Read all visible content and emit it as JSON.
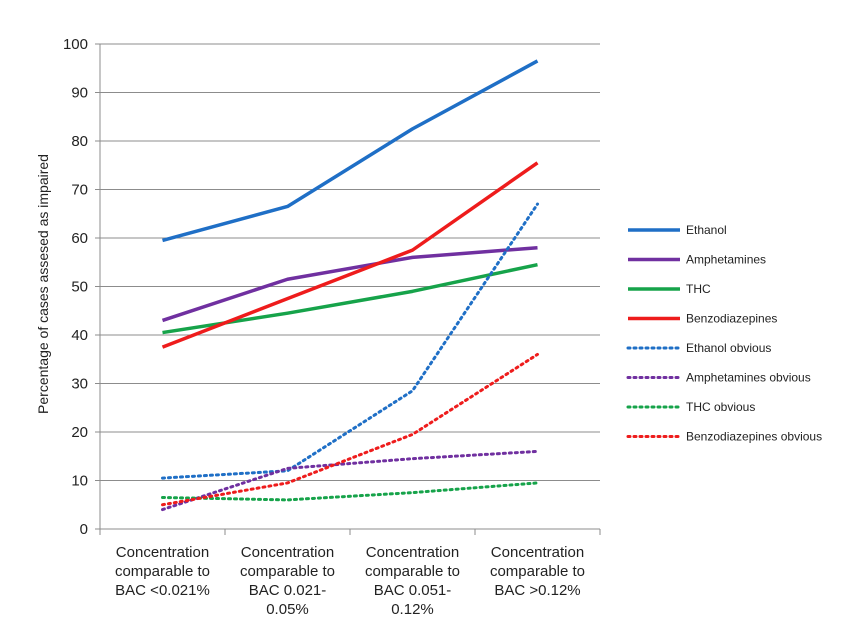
{
  "chart_data": {
    "type": "line",
    "title": "",
    "xlabel": "",
    "ylabel": "Percentage of cases assesed as impaired",
    "ylim": [
      0,
      100
    ],
    "yticks": [
      0,
      10,
      20,
      30,
      40,
      50,
      60,
      70,
      80,
      90,
      100
    ],
    "grid": "horizontal",
    "legend": "right",
    "categories": [
      [
        "Concentration",
        "comparable to",
        "BAC <0.021%"
      ],
      [
        "Concentration",
        "comparable to",
        "BAC 0.021-",
        "0.05%"
      ],
      [
        "Concentration",
        "comparable to",
        "BAC 0.051-",
        "0.12%"
      ],
      [
        "Concentration",
        "comparable to",
        "BAC >0.12%"
      ]
    ],
    "series": [
      {
        "name": "Ethanol",
        "values": [
          59.5,
          66.5,
          82.5,
          96.5
        ],
        "color": "#1f6fc6",
        "style": "solid"
      },
      {
        "name": "Amphetamines",
        "values": [
          43,
          51.5,
          56,
          58
        ],
        "color": "#7030a0",
        "style": "solid"
      },
      {
        "name": "THC",
        "values": [
          40.5,
          44.5,
          49,
          54.5
        ],
        "color": "#16a34a",
        "style": "solid"
      },
      {
        "name": "Benzodiazepines",
        "values": [
          37.5,
          47.5,
          57.5,
          75.5
        ],
        "color": "#ee1c1c",
        "style": "solid"
      },
      {
        "name": "Ethanol obvious",
        "values": [
          10.5,
          12,
          28.5,
          67
        ],
        "color": "#1f6fc6",
        "style": "dotted"
      },
      {
        "name": "Amphetamines obvious",
        "values": [
          4,
          12.5,
          14.5,
          16
        ],
        "color": "#7030a0",
        "style": "dotted"
      },
      {
        "name": "THC obvious",
        "values": [
          6.5,
          6,
          7.5,
          9.5
        ],
        "color": "#16a34a",
        "style": "dotted"
      },
      {
        "name": "Benzodiazepines obvious",
        "values": [
          5,
          9.5,
          19.5,
          36
        ],
        "color": "#ee1c1c",
        "style": "dotted"
      }
    ]
  }
}
